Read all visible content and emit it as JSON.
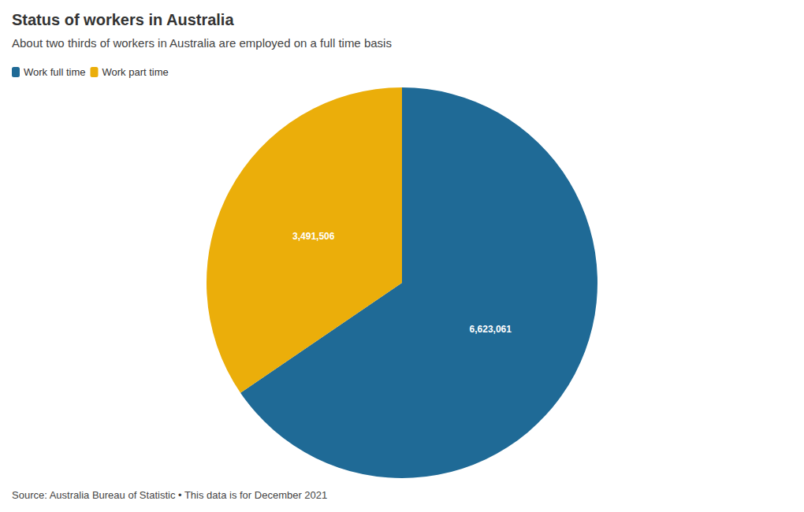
{
  "chart_data": {
    "type": "pie",
    "title": "Status of workers in Australia",
    "subtitle": "About two thirds of workers in Australia are employed on a full time basis",
    "categories": [
      "Work full time",
      "Work part time"
    ],
    "values": [
      6623061,
      3491506
    ],
    "value_labels": [
      "6,623,061",
      "3,491,506"
    ],
    "colors": [
      "#1f6a96",
      "#ebae0a"
    ],
    "data_labels": true,
    "legend": "top-left",
    "annotations": [
      "Source: Australia Bureau of Statistic • This data is for December 2021"
    ]
  }
}
